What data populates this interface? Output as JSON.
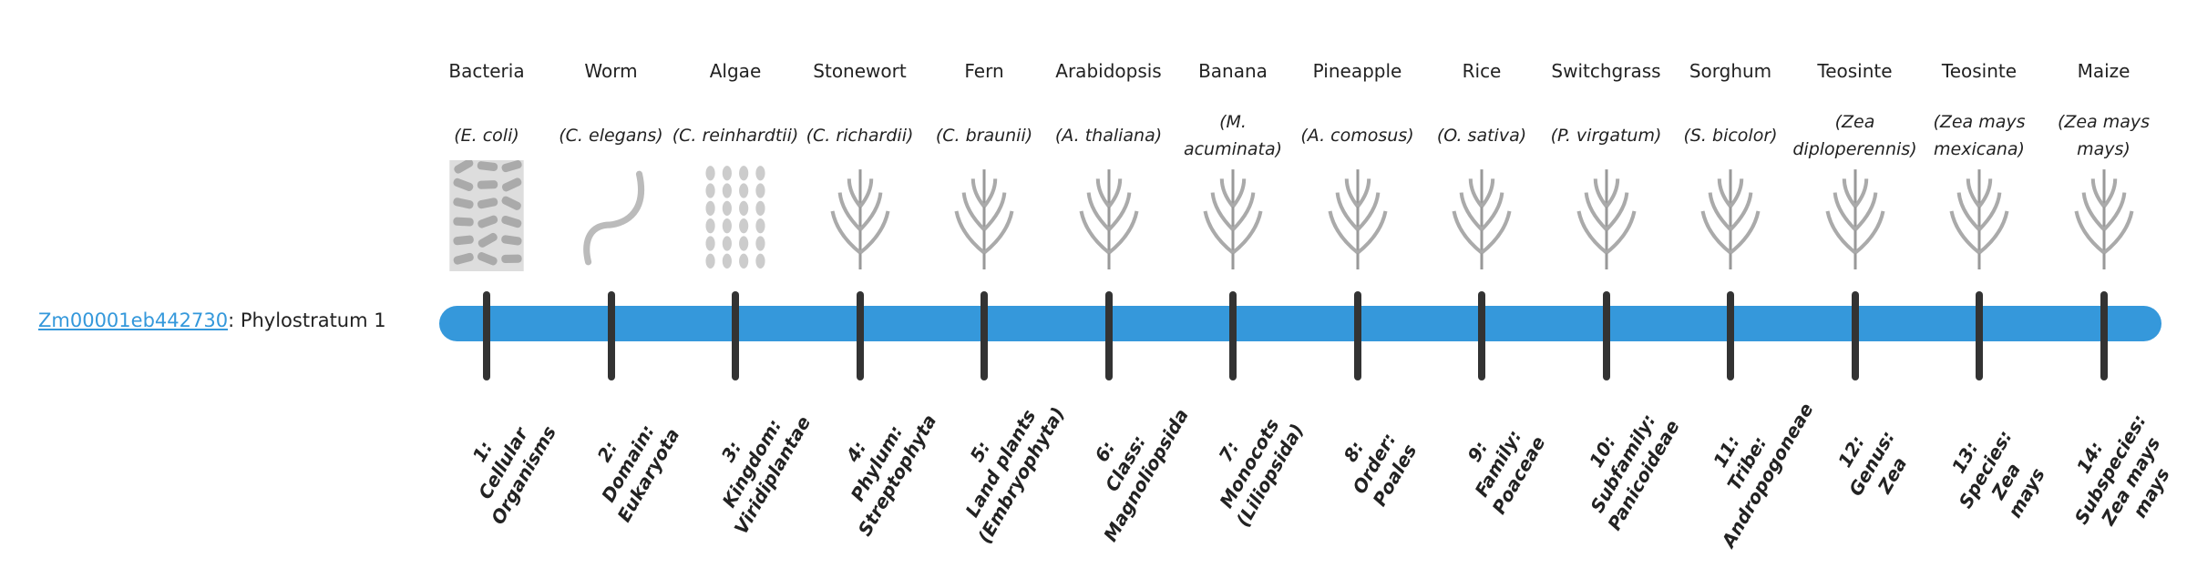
{
  "gene": {
    "id": "Zm00001eb442730",
    "suffix": ": Phylostratum 1"
  },
  "colors": {
    "bar": "#3598db",
    "tick": "#333333",
    "link": "#3498db"
  },
  "strata": [
    {
      "common": "Bacteria",
      "sci": "(E. coli)",
      "rank": [
        "1:",
        "Cellular",
        "Organisms"
      ],
      "icon": "bacteria-icon"
    },
    {
      "common": "Worm",
      "sci": "(C. elegans)",
      "rank": [
        "2:",
        "Domain:",
        "Eukaryota"
      ],
      "icon": "worm-icon"
    },
    {
      "common": "Algae",
      "sci": "(C. reinhardtii)",
      "rank": [
        "3:",
        "Kingdom:",
        "Viridiplantae"
      ],
      "icon": "algae-icon"
    },
    {
      "common": "Stonewort",
      "sci": "(C. richardii)",
      "rank": [
        "4:",
        "Phylum:",
        "Streptophyta"
      ],
      "icon": "stonewort-icon"
    },
    {
      "common": "Fern",
      "sci": "(C. braunii)",
      "rank": [
        "5:",
        "Land plants",
        "(Embryophyta)"
      ],
      "icon": "fern-icon"
    },
    {
      "common": "Arabidopsis",
      "sci": "(A. thaliana)",
      "rank": [
        "6:",
        "Class:",
        "Magnoliopsida"
      ],
      "icon": "arabidopsis-icon"
    },
    {
      "common": "Banana",
      "sci": "(M. acuminata)",
      "rank": [
        "7:",
        "Monocots",
        "(Liliopsida)"
      ],
      "icon": "banana-icon"
    },
    {
      "common": "Pineapple",
      "sci": "(A. comosus)",
      "rank": [
        "8:",
        "Order:",
        "Poales"
      ],
      "icon": "pineapple-icon"
    },
    {
      "common": "Rice",
      "sci": "(O. sativa)",
      "rank": [
        "9:",
        "Family:",
        "Poaceae"
      ],
      "icon": "rice-icon"
    },
    {
      "common": "Switchgrass",
      "sci": "(P. virgatum)",
      "rank": [
        "10:",
        "Subfamily:",
        "Panicoideae"
      ],
      "icon": "switchgrass-icon"
    },
    {
      "common": "Sorghum",
      "sci": "(S. bicolor)",
      "rank": [
        "11:",
        "Tribe:",
        "Andropogoneae"
      ],
      "icon": "sorghum-icon"
    },
    {
      "common": "Teosinte",
      "sci": "(Zea diploperennis)",
      "rank": [
        "12:",
        "Genus:",
        "Zea"
      ],
      "icon": "teosinte-icon"
    },
    {
      "common": "Teosinte",
      "sci": "(Zea mays mexicana)",
      "rank": [
        "13:",
        "Species:",
        "Zea",
        "mays"
      ],
      "icon": "teosinte-icon"
    },
    {
      "common": "Maize",
      "sci": "(Zea mays mays)",
      "rank": [
        "14:",
        "Subspecies:",
        "Zea mays",
        "mays"
      ],
      "icon": "maize-icon"
    }
  ]
}
